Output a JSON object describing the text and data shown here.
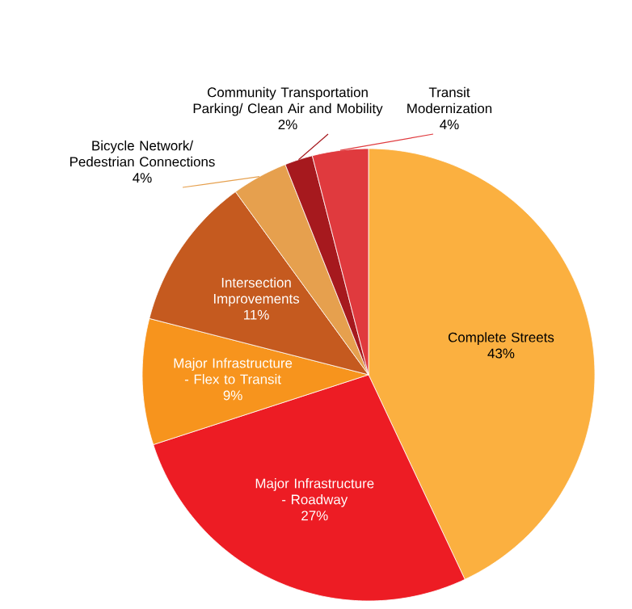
{
  "chart_data": {
    "type": "pie",
    "categories": [
      "Complete Streets",
      "Major Infrastructure - Roadway",
      "Major Infrastructure - Flex to Transit",
      "Intersection Improvements",
      "Bicycle Network/ Pedestrian Connections",
      "Community Transportation Parking/ Clean Air and Mobility",
      "Transit Modernization"
    ],
    "values": [
      43,
      27,
      9,
      11,
      4,
      2,
      4
    ],
    "value_labels": [
      "43%",
      "27%",
      "9%",
      "11%",
      "4%",
      "2%",
      "4%"
    ],
    "colors": [
      "#fbb040",
      "#ed1c24",
      "#f7941d",
      "#c55a1f",
      "#e6a04e",
      "#a6191e",
      "#e03a3e"
    ]
  }
}
